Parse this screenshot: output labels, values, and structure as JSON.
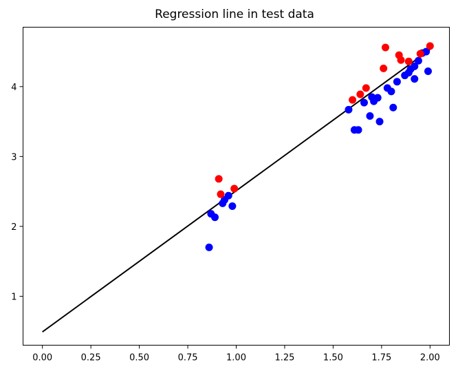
{
  "chart_data": {
    "type": "scatter",
    "title": "Regression line in test data",
    "xlabel": "",
    "ylabel": "",
    "xlim": [
      -0.1,
      2.1
    ],
    "ylim": [
      0.3,
      4.85
    ],
    "xticks": [
      "0.00",
      "0.25",
      "0.50",
      "0.75",
      "1.00",
      "1.25",
      "1.50",
      "1.75",
      "2.00"
    ],
    "yticks": [
      "1",
      "2",
      "3",
      "4"
    ],
    "grid": false,
    "series": [
      {
        "color": "#0000ff",
        "points": [
          [
            0.86,
            1.7
          ],
          [
            0.87,
            2.18
          ],
          [
            0.89,
            2.13
          ],
          [
            0.93,
            2.33
          ],
          [
            0.94,
            2.38
          ],
          [
            0.96,
            2.44
          ],
          [
            0.98,
            2.29
          ],
          [
            1.58,
            3.67
          ],
          [
            1.61,
            3.38
          ],
          [
            1.63,
            3.38
          ],
          [
            1.66,
            3.77
          ],
          [
            1.69,
            3.58
          ],
          [
            1.7,
            3.85
          ],
          [
            1.71,
            3.79
          ],
          [
            1.73,
            3.84
          ],
          [
            1.74,
            3.5
          ],
          [
            1.78,
            3.98
          ],
          [
            1.8,
            3.93
          ],
          [
            1.81,
            3.7
          ],
          [
            1.83,
            4.07
          ],
          [
            1.87,
            4.16
          ],
          [
            1.89,
            4.2
          ],
          [
            1.9,
            4.25
          ],
          [
            1.92,
            4.29
          ],
          [
            1.92,
            4.11
          ],
          [
            1.94,
            4.37
          ],
          [
            1.96,
            4.48
          ],
          [
            1.98,
            4.5
          ],
          [
            1.99,
            4.22
          ]
        ]
      },
      {
        "color": "#ff0000",
        "points": [
          [
            0.91,
            2.68
          ],
          [
            0.92,
            2.46
          ],
          [
            0.99,
            2.54
          ],
          [
            1.6,
            3.81
          ],
          [
            1.64,
            3.89
          ],
          [
            1.67,
            3.98
          ],
          [
            1.76,
            4.26
          ],
          [
            1.77,
            4.56
          ],
          [
            1.84,
            4.45
          ],
          [
            1.85,
            4.38
          ],
          [
            1.89,
            4.36
          ],
          [
            1.95,
            4.47
          ],
          [
            2.0,
            4.58
          ]
        ]
      },
      {
        "type": "line",
        "color": "#000000",
        "points": [
          [
            0.0,
            0.49
          ],
          [
            2.0,
            4.53
          ]
        ]
      }
    ]
  }
}
